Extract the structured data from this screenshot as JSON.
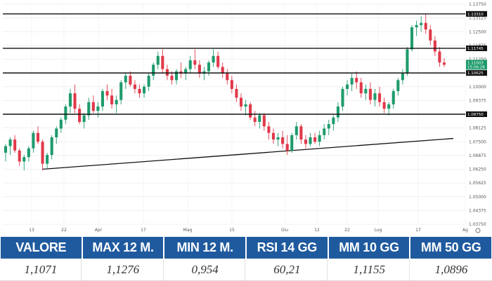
{
  "chart_data": {
    "type": "candlestick",
    "instrument_price_tag": "1.11003",
    "instrument_time_tag": "15:56:28",
    "y_ticks": [
      "1.13750",
      "1.13125",
      "1.12500",
      "1.11875",
      "1.11250",
      "1.10625",
      "1.10000",
      "1.09375",
      "1.08750",
      "1.08125",
      "1.07500",
      "1.06875",
      "1.06250",
      "1.05625",
      "1.05000",
      "1.04375",
      "1.03750"
    ],
    "y_tick_values": [
      1.1375,
      1.13125,
      1.125,
      1.11875,
      1.1125,
      1.10625,
      1.1,
      1.09375,
      1.0875,
      1.08125,
      1.075,
      1.06875,
      1.0625,
      1.05625,
      1.05,
      1.04375,
      1.0375
    ],
    "ylim": [
      1.0375,
      1.1375
    ],
    "x_labels": [
      "13",
      "22",
      "Apr",
      "17",
      "Mag",
      "15",
      "Giu",
      "12",
      "22",
      "Lug",
      "17",
      "Ag"
    ],
    "horizontal_levels": [
      {
        "value": 1.1331,
        "label": "1.13310"
      },
      {
        "value": 1.11745,
        "label": "1.11745"
      },
      {
        "value": 1.10625,
        "label": "1.10625"
      },
      {
        "value": 1.0875,
        "label": "1.08750"
      }
    ],
    "trendline": {
      "from": {
        "date": "2024-03-13",
        "value": 1.0625
      },
      "to": {
        "date": "2024-08-02",
        "value": 1.0765
      }
    },
    "grid": true,
    "candles": [
      {
        "o": 1.07,
        "h": 1.074,
        "l": 1.066,
        "c": 1.073
      },
      {
        "o": 1.073,
        "h": 1.077,
        "l": 1.069,
        "c": 1.076
      },
      {
        "o": 1.076,
        "h": 1.078,
        "l": 1.07,
        "c": 1.071
      },
      {
        "o": 1.071,
        "h": 1.072,
        "l": 1.064,
        "c": 1.066
      },
      {
        "o": 1.066,
        "h": 1.069,
        "l": 1.062,
        "c": 1.068
      },
      {
        "o": 1.068,
        "h": 1.073,
        "l": 1.066,
        "c": 1.072
      },
      {
        "o": 1.072,
        "h": 1.08,
        "l": 1.07,
        "c": 1.079
      },
      {
        "o": 1.079,
        "h": 1.082,
        "l": 1.074,
        "c": 1.075
      },
      {
        "o": 1.075,
        "h": 1.076,
        "l": 1.062,
        "c": 1.065
      },
      {
        "o": 1.065,
        "h": 1.07,
        "l": 1.063,
        "c": 1.069
      },
      {
        "o": 1.069,
        "h": 1.078,
        "l": 1.067,
        "c": 1.077
      },
      {
        "o": 1.077,
        "h": 1.082,
        "l": 1.074,
        "c": 1.081
      },
      {
        "o": 1.081,
        "h": 1.086,
        "l": 1.079,
        "c": 1.085
      },
      {
        "o": 1.085,
        "h": 1.092,
        "l": 1.083,
        "c": 1.091
      },
      {
        "o": 1.091,
        "h": 1.099,
        "l": 1.088,
        "c": 1.097
      },
      {
        "o": 1.097,
        "h": 1.101,
        "l": 1.088,
        "c": 1.09
      },
      {
        "o": 1.09,
        "h": 1.092,
        "l": 1.083,
        "c": 1.084
      },
      {
        "o": 1.084,
        "h": 1.088,
        "l": 1.081,
        "c": 1.087
      },
      {
        "o": 1.087,
        "h": 1.095,
        "l": 1.085,
        "c": 1.093
      },
      {
        "o": 1.093,
        "h": 1.096,
        "l": 1.088,
        "c": 1.089
      },
      {
        "o": 1.089,
        "h": 1.093,
        "l": 1.086,
        "c": 1.091
      },
      {
        "o": 1.091,
        "h": 1.099,
        "l": 1.089,
        "c": 1.098
      },
      {
        "o": 1.098,
        "h": 1.101,
        "l": 1.094,
        "c": 1.096
      },
      {
        "o": 1.096,
        "h": 1.099,
        "l": 1.09,
        "c": 1.092
      },
      {
        "o": 1.092,
        "h": 1.096,
        "l": 1.088,
        "c": 1.094
      },
      {
        "o": 1.094,
        "h": 1.103,
        "l": 1.092,
        "c": 1.102
      },
      {
        "o": 1.102,
        "h": 1.106,
        "l": 1.099,
        "c": 1.105
      },
      {
        "o": 1.105,
        "h": 1.107,
        "l": 1.1,
        "c": 1.101
      },
      {
        "o": 1.101,
        "h": 1.103,
        "l": 1.097,
        "c": 1.099
      },
      {
        "o": 1.099,
        "h": 1.101,
        "l": 1.095,
        "c": 1.097
      },
      {
        "o": 1.097,
        "h": 1.101,
        "l": 1.095,
        "c": 1.1
      },
      {
        "o": 1.1,
        "h": 1.106,
        "l": 1.098,
        "c": 1.105
      },
      {
        "o": 1.105,
        "h": 1.111,
        "l": 1.103,
        "c": 1.11
      },
      {
        "o": 1.11,
        "h": 1.116,
        "l": 1.108,
        "c": 1.114
      },
      {
        "o": 1.114,
        "h": 1.117,
        "l": 1.106,
        "c": 1.108
      },
      {
        "o": 1.108,
        "h": 1.11,
        "l": 1.103,
        "c": 1.105
      },
      {
        "o": 1.105,
        "h": 1.107,
        "l": 1.101,
        "c": 1.103
      },
      {
        "o": 1.103,
        "h": 1.108,
        "l": 1.101,
        "c": 1.107
      },
      {
        "o": 1.107,
        "h": 1.111,
        "l": 1.104,
        "c": 1.106
      },
      {
        "o": 1.106,
        "h": 1.109,
        "l": 1.103,
        "c": 1.108
      },
      {
        "o": 1.108,
        "h": 1.114,
        "l": 1.106,
        "c": 1.112
      },
      {
        "o": 1.112,
        "h": 1.117,
        "l": 1.108,
        "c": 1.11
      },
      {
        "o": 1.11,
        "h": 1.112,
        "l": 1.104,
        "c": 1.106
      },
      {
        "o": 1.106,
        "h": 1.109,
        "l": 1.103,
        "c": 1.107
      },
      {
        "o": 1.107,
        "h": 1.112,
        "l": 1.105,
        "c": 1.111
      },
      {
        "o": 1.111,
        "h": 1.117,
        "l": 1.109,
        "c": 1.114
      },
      {
        "o": 1.114,
        "h": 1.116,
        "l": 1.108,
        "c": 1.109
      },
      {
        "o": 1.109,
        "h": 1.111,
        "l": 1.104,
        "c": 1.106
      },
      {
        "o": 1.106,
        "h": 1.108,
        "l": 1.101,
        "c": 1.103
      },
      {
        "o": 1.103,
        "h": 1.105,
        "l": 1.097,
        "c": 1.099
      },
      {
        "o": 1.099,
        "h": 1.101,
        "l": 1.093,
        "c": 1.095
      },
      {
        "o": 1.095,
        "h": 1.097,
        "l": 1.089,
        "c": 1.091
      },
      {
        "o": 1.091,
        "h": 1.094,
        "l": 1.087,
        "c": 1.092
      },
      {
        "o": 1.092,
        "h": 1.093,
        "l": 1.085,
        "c": 1.086
      },
      {
        "o": 1.086,
        "h": 1.089,
        "l": 1.082,
        "c": 1.084
      },
      {
        "o": 1.084,
        "h": 1.088,
        "l": 1.081,
        "c": 1.087
      },
      {
        "o": 1.087,
        "h": 1.088,
        "l": 1.08,
        "c": 1.082
      },
      {
        "o": 1.082,
        "h": 1.084,
        "l": 1.076,
        "c": 1.079
      },
      {
        "o": 1.079,
        "h": 1.081,
        "l": 1.074,
        "c": 1.076
      },
      {
        "o": 1.076,
        "h": 1.079,
        "l": 1.073,
        "c": 1.077
      },
      {
        "o": 1.077,
        "h": 1.08,
        "l": 1.072,
        "c": 1.074
      },
      {
        "o": 1.074,
        "h": 1.078,
        "l": 1.069,
        "c": 1.071
      },
      {
        "o": 1.071,
        "h": 1.079,
        "l": 1.07,
        "c": 1.078
      },
      {
        "o": 1.078,
        "h": 1.084,
        "l": 1.076,
        "c": 1.082
      },
      {
        "o": 1.082,
        "h": 1.083,
        "l": 1.074,
        "c": 1.076
      },
      {
        "o": 1.076,
        "h": 1.078,
        "l": 1.072,
        "c": 1.074
      },
      {
        "o": 1.074,
        "h": 1.079,
        "l": 1.073,
        "c": 1.077
      },
      {
        "o": 1.077,
        "h": 1.079,
        "l": 1.074,
        "c": 1.075
      },
      {
        "o": 1.075,
        "h": 1.08,
        "l": 1.073,
        "c": 1.078
      },
      {
        "o": 1.078,
        "h": 1.083,
        "l": 1.076,
        "c": 1.081
      },
      {
        "o": 1.081,
        "h": 1.085,
        "l": 1.078,
        "c": 1.083
      },
      {
        "o": 1.083,
        "h": 1.087,
        "l": 1.08,
        "c": 1.086
      },
      {
        "o": 1.086,
        "h": 1.093,
        "l": 1.084,
        "c": 1.091
      },
      {
        "o": 1.091,
        "h": 1.1,
        "l": 1.089,
        "c": 1.099
      },
      {
        "o": 1.099,
        "h": 1.103,
        "l": 1.096,
        "c": 1.101
      },
      {
        "o": 1.101,
        "h": 1.106,
        "l": 1.098,
        "c": 1.104
      },
      {
        "o": 1.104,
        "h": 1.107,
        "l": 1.099,
        "c": 1.102
      },
      {
        "o": 1.102,
        "h": 1.104,
        "l": 1.095,
        "c": 1.097
      },
      {
        "o": 1.097,
        "h": 1.101,
        "l": 1.094,
        "c": 1.099
      },
      {
        "o": 1.099,
        "h": 1.102,
        "l": 1.092,
        "c": 1.094
      },
      {
        "o": 1.094,
        "h": 1.099,
        "l": 1.091,
        "c": 1.097
      },
      {
        "o": 1.097,
        "h": 1.1,
        "l": 1.091,
        "c": 1.093
      },
      {
        "o": 1.093,
        "h": 1.095,
        "l": 1.088,
        "c": 1.09
      },
      {
        "o": 1.09,
        "h": 1.093,
        "l": 1.087,
        "c": 1.092
      },
      {
        "o": 1.092,
        "h": 1.099,
        "l": 1.09,
        "c": 1.098
      },
      {
        "o": 1.098,
        "h": 1.104,
        "l": 1.096,
        "c": 1.103
      },
      {
        "o": 1.103,
        "h": 1.108,
        "l": 1.101,
        "c": 1.106
      },
      {
        "o": 1.106,
        "h": 1.118,
        "l": 1.105,
        "c": 1.117
      },
      {
        "o": 1.117,
        "h": 1.128,
        "l": 1.116,
        "c": 1.127
      },
      {
        "o": 1.127,
        "h": 1.13,
        "l": 1.123,
        "c": 1.128
      },
      {
        "o": 1.128,
        "h": 1.132,
        "l": 1.125,
        "c": 1.129
      },
      {
        "o": 1.129,
        "h": 1.133,
        "l": 1.124,
        "c": 1.126
      },
      {
        "o": 1.126,
        "h": 1.128,
        "l": 1.119,
        "c": 1.121
      },
      {
        "o": 1.121,
        "h": 1.123,
        "l": 1.114,
        "c": 1.116
      },
      {
        "o": 1.116,
        "h": 1.118,
        "l": 1.109,
        "c": 1.111
      },
      {
        "o": 1.111,
        "h": 1.113,
        "l": 1.109,
        "c": 1.11
      }
    ]
  },
  "colors": {
    "up": "#1e9b6c",
    "down": "#e0394a",
    "level_line": "#111111",
    "trendline": "#111111",
    "table_header_bg": "#1f5a9e",
    "price_tag": "#1e9b6c"
  },
  "table": {
    "headers": [
      "VALORE",
      "MAX 12 M.",
      "MIN 12 M.",
      "RSI 14 GG",
      "MM 10 GG",
      "MM 50 GG"
    ],
    "values": [
      "1,1071",
      "1,1276",
      "0,954",
      "60,21",
      "1,1155",
      "1,0896"
    ]
  }
}
